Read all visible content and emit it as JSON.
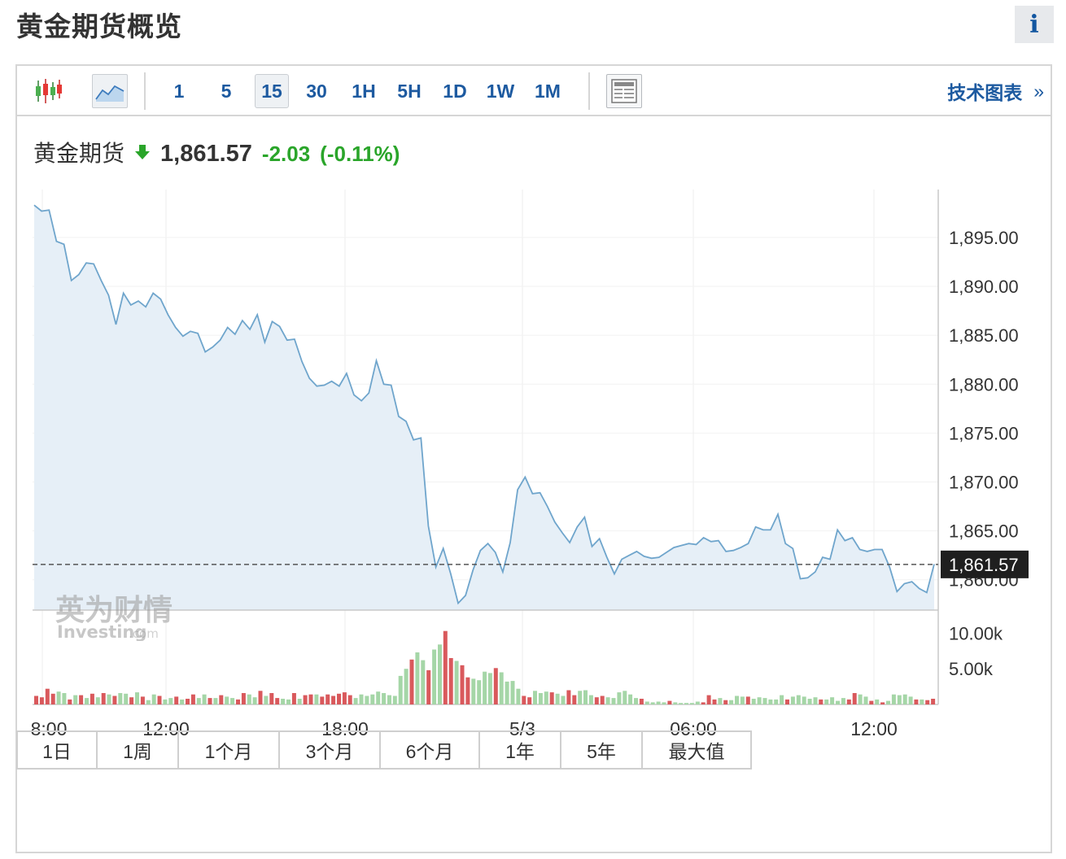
{
  "header": {
    "title": "黄金期货概览",
    "info_label": "i"
  },
  "toolbar": {
    "timeframes": [
      "1",
      "5",
      "15",
      "30",
      "1H",
      "5H",
      "1D",
      "1W",
      "1M"
    ],
    "active_timeframe": "15",
    "tech_label": "技术图表",
    "tech_arrow": "»",
    "icons": [
      "candlestick-icon",
      "area-chart-icon",
      "table-view-icon"
    ]
  },
  "quote": {
    "name": "黄金期货",
    "price": "1,861.57",
    "change": "-2.03",
    "change_pct": "(-0.11%)",
    "direction": "down"
  },
  "colors": {
    "line": "#6fa5cc",
    "area": "#e6eff7",
    "up": "#d9595c",
    "down": "#a5d6a7",
    "accent": "#1d5aa0",
    "green": "#2aa52a"
  },
  "watermark": {
    "brand": "英为财情",
    "sub": "Investing",
    "suffix": ".com"
  },
  "ranges": [
    "1日",
    "1周",
    "1个月",
    "3个月",
    "6个月",
    "1年",
    "5年",
    "最大值"
  ],
  "chart_data": {
    "type": "area",
    "price_axis": {
      "labels": [
        "1,895.00",
        "1,890.00",
        "1,885.00",
        "1,880.00",
        "1,875.00",
        "1,870.00",
        "1,865.00",
        "1,860.00"
      ],
      "ylim": [
        1856.9,
        1899.9
      ]
    },
    "volume_axis": {
      "labels": [
        "10.00k",
        "5.00k"
      ],
      "ylim": [
        0,
        13000
      ]
    },
    "x_tick_labels": [
      "8:00",
      "12:00",
      "18:00",
      "5/3",
      "06:00",
      "12:00"
    ],
    "current_price": 1861.57,
    "current_price_label": "1,861.57",
    "price": [
      1898.3,
      1897.7,
      1897.8,
      1894.6,
      1894.3,
      1890.6,
      1891.2,
      1892.4,
      1892.3,
      1890.6,
      1889.1,
      1886.1,
      1889.3,
      1888.1,
      1888.5,
      1887.9,
      1889.3,
      1888.7,
      1887.1,
      1885.8,
      1884.9,
      1885.4,
      1885.2,
      1883.3,
      1883.8,
      1884.5,
      1885.8,
      1885.1,
      1886.5,
      1885.6,
      1887.1,
      1884.3,
      1886.4,
      1885.9,
      1884.5,
      1884.6,
      1882.3,
      1880.6,
      1879.8,
      1879.9,
      1880.3,
      1879.8,
      1881.1,
      1878.9,
      1878.3,
      1879.1,
      1882.4,
      1880.0,
      1879.9,
      1876.7,
      1876.2,
      1874.3,
      1874.5,
      1865.5,
      1861.3,
      1863.2,
      1860.6,
      1857.6,
      1858.4,
      1861.0,
      1863.0,
      1863.7,
      1862.8,
      1860.8,
      1863.8,
      1869.2,
      1870.5,
      1868.8,
      1868.9,
      1867.5,
      1865.9,
      1864.8,
      1863.8,
      1865.4,
      1866.4,
      1863.4,
      1864.2,
      1862.3,
      1860.6,
      1862.1,
      1862.5,
      1862.9,
      1862.4,
      1862.2,
      1862.3,
      1862.8,
      1863.3,
      1863.5,
      1863.7,
      1863.6,
      1864.3,
      1863.9,
      1864.0,
      1862.9,
      1863.0,
      1863.3,
      1863.7,
      1865.4,
      1865.1,
      1865.1,
      1866.7,
      1863.7,
      1863.2,
      1860.1,
      1860.2,
      1860.8,
      1862.3,
      1862.1,
      1865.1,
      1864.0,
      1864.3,
      1863.1,
      1862.9,
      1863.1,
      1863.1,
      1861.3,
      1858.8,
      1859.6,
      1859.8,
      1859.1,
      1858.7,
      1861.6
    ],
    "volume": [
      1200,
      1000,
      2200,
      1500,
      1800,
      1600,
      700,
      1300,
      1300,
      900,
      1500,
      1000,
      1600,
      1400,
      1200,
      1600,
      1500,
      1000,
      1700,
      1100,
      600,
      1400,
      1200,
      700,
      900,
      1100,
      700,
      800,
      1400,
      900,
      1400,
      900,
      900,
      1300,
      1100,
      900,
      700,
      1600,
      1400,
      1000,
      1900,
      1200,
      1600,
      900,
      800,
      700,
      1600,
      800,
      1300,
      1400,
      1400,
      1100,
      1400,
      1200,
      1500,
      1700,
      1300,
      900,
      1400,
      1200,
      1400,
      1800,
      1600,
      1300,
      1200,
      4000,
      5000,
      6300,
      7300,
      6200,
      4800,
      7700,
      8400,
      10300,
      6500,
      6100,
      5500,
      3800,
      3600,
      3400,
      4600,
      4400,
      5100,
      4500,
      3200,
      3300,
      2200,
      1200,
      1000,
      1900,
      1600,
      1800,
      1700,
      1500,
      1200,
      2000,
      1300,
      1900,
      2000,
      1300,
      1000,
      1200,
      1000,
      900,
      1700,
      1900,
      1400,
      900,
      800,
      400,
      300,
      400,
      300,
      500,
      300,
      200,
      200,
      200,
      400,
      300,
      1300,
      700,
      900,
      600,
      600,
      1200,
      1100,
      1100,
      800,
      1000,
      900,
      700,
      700,
      1300,
      700,
      1100,
      1300,
      1100,
      800,
      1000,
      700,
      700,
      1000,
      500,
      900,
      700,
      1600,
      1400,
      1100,
      500,
      700,
      300,
      500,
      1400,
      1300,
      1400,
      1100,
      700,
      700,
      600,
      800
    ],
    "volume_up": [
      true,
      true,
      true,
      true,
      false,
      false,
      true,
      false,
      true,
      false,
      true,
      false,
      true,
      false,
      true,
      false,
      false,
      true,
      false,
      true,
      false,
      false,
      true,
      false,
      false,
      true,
      false,
      true,
      true,
      false,
      false,
      true,
      false,
      true,
      false,
      false,
      true,
      true,
      false,
      false,
      true,
      false,
      true,
      true,
      false,
      false,
      true,
      false,
      true,
      true,
      false,
      true,
      true,
      true,
      true,
      true,
      true,
      false,
      false,
      false,
      false,
      false,
      false,
      false,
      false,
      false,
      false,
      true,
      false,
      false,
      true,
      false,
      false,
      true,
      true,
      false,
      true,
      true,
      false,
      false,
      false,
      false,
      true,
      false,
      false,
      false,
      false,
      true,
      true,
      false,
      false,
      false,
      true,
      false,
      false,
      true,
      true,
      false,
      false,
      false,
      true,
      true,
      false,
      false,
      false,
      false,
      false,
      false,
      true,
      false,
      false,
      false,
      false,
      true,
      false,
      false,
      false,
      false,
      false,
      true,
      true,
      true,
      false,
      true,
      false,
      false,
      false,
      true,
      false,
      false,
      false,
      false,
      false,
      false,
      true,
      false,
      false,
      false,
      false,
      false,
      true,
      false,
      false,
      false,
      false,
      true,
      true,
      false,
      false,
      true,
      false,
      true,
      false,
      false,
      false,
      false,
      false,
      true,
      false,
      true,
      true,
      true,
      false,
      false,
      false,
      false,
      false
    ]
  }
}
